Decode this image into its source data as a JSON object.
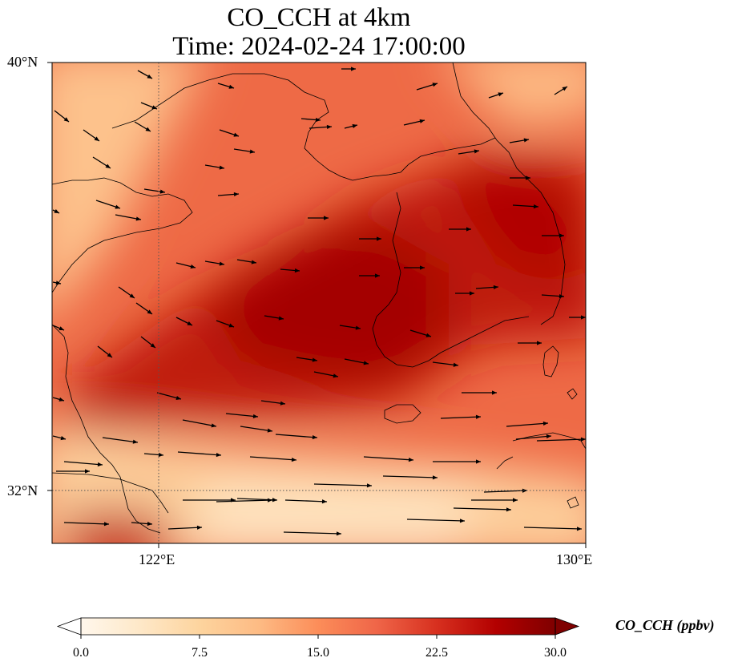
{
  "title": {
    "line1": "CO_CCH at 4km",
    "line2": "Time: 2024-02-24 17:00:00"
  },
  "axes": {
    "lat_labels": [
      "40°N",
      "32°N"
    ],
    "lon_labels": [
      "122°E",
      "130°E"
    ],
    "extent": {
      "lon_min": 120,
      "lon_max": 130,
      "lat_min": 31,
      "lat_max": 40
    },
    "gridlines": {
      "lon": [
        122
      ],
      "lat": [
        32
      ],
      "style": "dotted"
    }
  },
  "colorbar": {
    "label": "CO_CCH (ppbv)",
    "ticks": [
      "0.0",
      "7.5",
      "15.0",
      "22.5",
      "30.0"
    ],
    "min": 0,
    "max": 30,
    "extend": "both",
    "colormap": "OrRd",
    "colors": [
      "#fff7ec",
      "#fee8c8",
      "#fdd49e",
      "#fdbb84",
      "#fc8d59",
      "#ef6548",
      "#d7301f",
      "#b30000",
      "#7f0000"
    ]
  },
  "field": {
    "description_units": "ppbv",
    "max_region": "central Yellow Sea",
    "min_region": "south edge near 32°N"
  },
  "wind_vectors": "shown as black arrows, predominantly westerly to west-northwesterly"
}
